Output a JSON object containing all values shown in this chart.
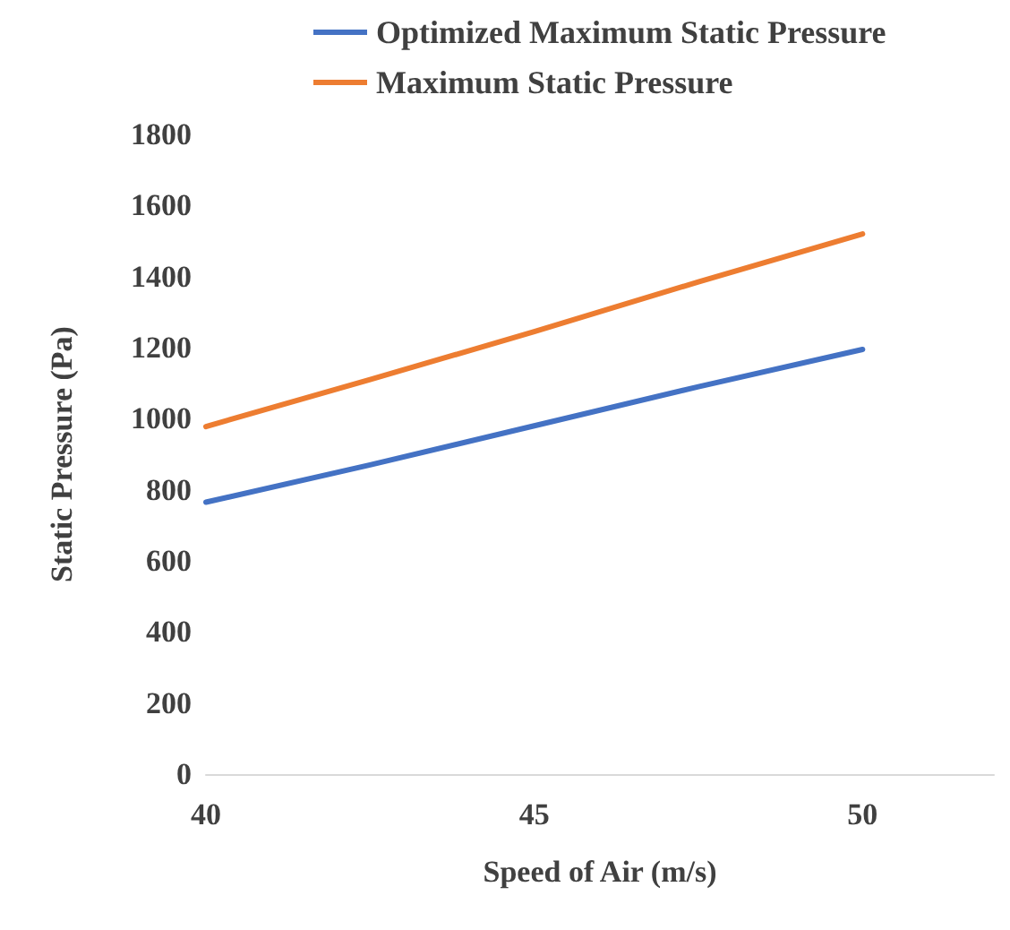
{
  "chart_data": {
    "type": "line",
    "xlabel": "Speed of Air (m/s)",
    "ylabel": "Static Pressure (Pa)",
    "x": [
      40,
      42.5,
      45,
      47.5,
      50
    ],
    "series": [
      {
        "name": "Optimized Maximum Static Pressure",
        "color": "#4472c4",
        "values": [
          765,
          870,
          980,
          1090,
          1195
        ]
      },
      {
        "name": "Maximum Static Pressure",
        "color": "#ed7d31",
        "values": [
          978,
          1110,
          1245,
          1385,
          1520
        ]
      }
    ],
    "xlim": [
      40,
      52
    ],
    "xticks": [
      40,
      45,
      50
    ],
    "ylim": [
      0,
      1800
    ],
    "yticks": [
      0,
      200,
      400,
      600,
      800,
      1000,
      1200,
      1400,
      1600,
      1800
    ],
    "grid": false,
    "legend": "top",
    "marker": "none",
    "line_style": "solid"
  }
}
